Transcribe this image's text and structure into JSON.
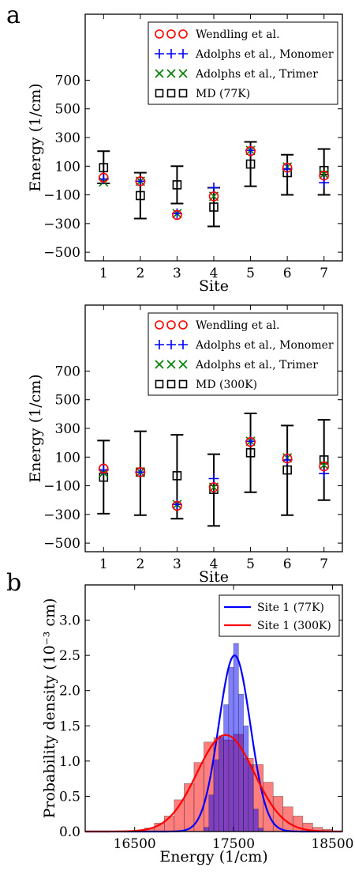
{
  "panel_labels": {
    "a": "a",
    "b": "b"
  },
  "chart_data": [
    {
      "type": "scatter",
      "title": "",
      "xlabel": "Site",
      "ylabel": "Energy (1/cm)",
      "x_ticks": [
        "1",
        "2",
        "3",
        "4",
        "5",
        "6",
        "7"
      ],
      "y_ticks": [
        "700",
        "500",
        "300",
        "100",
        "-100",
        "-300",
        "-500"
      ],
      "xlim": [
        0.5,
        7.5
      ],
      "ylim": [
        -560,
        1160
      ],
      "legend_location": "top-right",
      "legend": [
        {
          "label": "Wendling et al.",
          "marker": "circle",
          "color": "#ff0000"
        },
        {
          "label": "Adolphs et al., Monomer",
          "marker": "plus",
          "color": "#0000ff"
        },
        {
          "label": "Adolphs et al., Trimer",
          "marker": "x",
          "color": "#008000"
        },
        {
          "label": "MD (77K)",
          "marker": "square",
          "color": "#000000"
        }
      ],
      "series": [
        {
          "name": "Wendling et al.",
          "marker": "circle",
          "color": "#ff0000",
          "x": [
            1,
            2,
            3,
            4,
            5,
            6,
            7
          ],
          "y": [
            20,
            -5,
            -240,
            -110,
            205,
            90,
            35
          ]
        },
        {
          "name": "Adolphs et al., Monomer",
          "marker": "plus",
          "color": "#0000ff",
          "x": [
            1,
            2,
            3,
            4,
            5,
            6,
            7
          ],
          "y": [
            10,
            -5,
            -230,
            -50,
            210,
            80,
            -15
          ]
        },
        {
          "name": "Adolphs et al., Trimer",
          "marker": "x",
          "color": "#008000",
          "x": [
            1,
            2,
            3,
            4,
            5,
            6,
            7
          ],
          "y": [
            -10,
            -5,
            -230,
            -110,
            210,
            95,
            45
          ]
        },
        {
          "name": "MD (77K)",
          "marker": "square",
          "color": "#000000",
          "x": [
            1,
            2,
            3,
            4,
            5,
            6,
            7
          ],
          "y": [
            90,
            -105,
            -30,
            -185,
            115,
            55,
            70
          ],
          "err_low": [
            -20,
            -265,
            -160,
            -320,
            -40,
            -100,
            -100
          ],
          "err_high": [
            205,
            55,
            100,
            -50,
            270,
            180,
            220
          ]
        }
      ]
    },
    {
      "type": "scatter",
      "title": "",
      "xlabel": "Site",
      "ylabel": "Energy (1/cm)",
      "x_ticks": [
        "1",
        "2",
        "3",
        "4",
        "5",
        "6",
        "7"
      ],
      "y_ticks": [
        "700",
        "500",
        "300",
        "100",
        "-100",
        "-300",
        "-500"
      ],
      "xlim": [
        0.5,
        7.5
      ],
      "ylim": [
        -560,
        1160
      ],
      "legend_location": "top-right",
      "legend": [
        {
          "label": "Wendling et al.",
          "marker": "circle",
          "color": "#ff0000"
        },
        {
          "label": "Adolphs et al., Monomer",
          "marker": "plus",
          "color": "#0000ff"
        },
        {
          "label": "Adolphs et al., Trimer",
          "marker": "x",
          "color": "#008000"
        },
        {
          "label": "MD (300K)",
          "marker": "square",
          "color": "#000000"
        }
      ],
      "series": [
        {
          "name": "Wendling et al.",
          "marker": "circle",
          "color": "#ff0000",
          "x": [
            1,
            2,
            3,
            4,
            5,
            6,
            7
          ],
          "y": [
            20,
            -5,
            -240,
            -110,
            205,
            90,
            35
          ]
        },
        {
          "name": "Adolphs et al., Monomer",
          "marker": "plus",
          "color": "#0000ff",
          "x": [
            1,
            2,
            3,
            4,
            5,
            6,
            7
          ],
          "y": [
            10,
            -5,
            -230,
            -50,
            210,
            80,
            -15
          ]
        },
        {
          "name": "Adolphs et al., Trimer",
          "marker": "x",
          "color": "#008000",
          "x": [
            1,
            2,
            3,
            4,
            5,
            6,
            7
          ],
          "y": [
            -10,
            -5,
            -230,
            -110,
            210,
            95,
            45
          ]
        },
        {
          "name": "MD (300K)",
          "marker": "square",
          "color": "#000000",
          "x": [
            1,
            2,
            3,
            4,
            5,
            6,
            7
          ],
          "y": [
            -40,
            -5,
            -30,
            -125,
            130,
            10,
            80
          ],
          "err_low": [
            -295,
            -305,
            -330,
            -380,
            -145,
            -305,
            -200
          ],
          "err_high": [
            215,
            280,
            255,
            120,
            405,
            320,
            360
          ]
        }
      ]
    },
    {
      "type": "histogram",
      "title": "",
      "xlabel": "Energy (1/cm)",
      "ylabel": "Probability density (10⁻³ cm)",
      "x_ticks": [
        "16500",
        "17500",
        "18500"
      ],
      "y_ticks": [
        "0.0",
        "0.5",
        "1.0",
        "1.5",
        "2.0",
        "2.5",
        "3.0"
      ],
      "xlim": [
        16000,
        18600
      ],
      "ylim": [
        0,
        3.5
      ],
      "legend_location": "top-right",
      "legend": [
        {
          "label": "Site 1 (77K)",
          "color": "#0000ff"
        },
        {
          "label": "Site 1 (300K)",
          "color": "#ff0000"
        }
      ],
      "histograms": [
        {
          "name": "Site 1 (300K)",
          "color": "#ff0000",
          "alpha": 0.5,
          "bin_start": 16600,
          "bin_width": 100,
          "values": [
            0.05,
            0.12,
            0.22,
            0.45,
            0.68,
            0.98,
            1.27,
            1.33,
            1.3,
            1.38,
            1.04,
            0.95,
            0.7,
            0.5,
            0.35,
            0.22,
            0.12,
            0.06,
            0.03
          ]
        },
        {
          "name": "Site 1 (77K)",
          "color": "#0000ff",
          "alpha": 0.5,
          "bin_start": 17200,
          "bin_width": 50,
          "values": [
            0.06,
            0.52,
            1.02,
            1.36,
            1.8,
            2.33,
            2.67,
            1.95,
            1.5,
            0.95,
            0.32,
            0.05
          ]
        }
      ],
      "curves": [
        {
          "name": "Site 1 (77K)",
          "color": "#0000ff",
          "type": "gaussian",
          "mean": 17510,
          "sigma": 160,
          "peak": 2.5
        },
        {
          "name": "Site 1 (300K)",
          "color": "#ff0000",
          "type": "gaussian",
          "mean": 17420,
          "sigma": 290,
          "peak": 1.37
        }
      ]
    }
  ]
}
